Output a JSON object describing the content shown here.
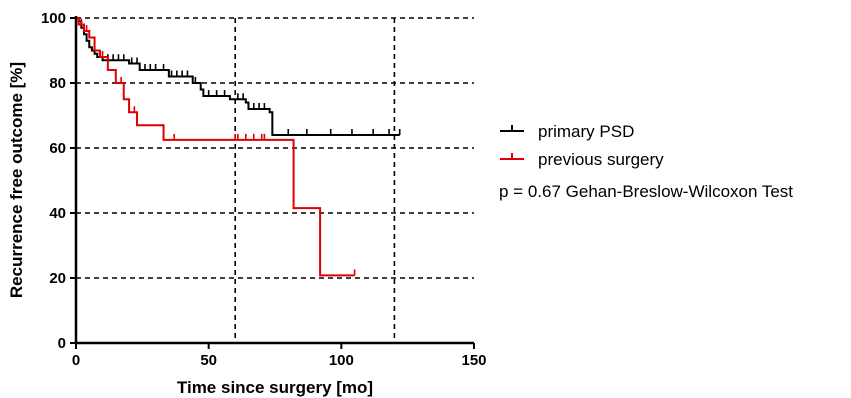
{
  "chart_data": {
    "type": "line",
    "subtype": "kaplan-meier step",
    "title": "",
    "xlabel": "Time since surgery [mo]",
    "ylabel": "Recurrence free outcome [%]",
    "xlim": [
      0,
      150
    ],
    "ylim": [
      0,
      100
    ],
    "xticks": [
      0,
      50,
      100,
      150
    ],
    "yticks": [
      0,
      20,
      40,
      60,
      80,
      100
    ],
    "grid": "dashed",
    "vertical_reference_lines": [
      60,
      120
    ],
    "legend_position": "right",
    "annotation": "p = 0.67 Gehan-Breslow-Wilcoxon Test",
    "series": [
      {
        "name": "primary PSD",
        "color": "#000000",
        "steps": [
          [
            0,
            100
          ],
          [
            1,
            99
          ],
          [
            2,
            97
          ],
          [
            3,
            95
          ],
          [
            4,
            93
          ],
          [
            5,
            91
          ],
          [
            6,
            90
          ],
          [
            7,
            89
          ],
          [
            8,
            88
          ],
          [
            10,
            87
          ],
          [
            20,
            86
          ],
          [
            24,
            84
          ],
          [
            35,
            82
          ],
          [
            44,
            80
          ],
          [
            47,
            78
          ],
          [
            48,
            76
          ],
          [
            58,
            75
          ],
          [
            64,
            74
          ],
          [
            65,
            72
          ],
          [
            73,
            71
          ],
          [
            74,
            64
          ],
          [
            122,
            64
          ]
        ],
        "censored_x": [
          5,
          9,
          12,
          14,
          16,
          18,
          21,
          23,
          26,
          28,
          30,
          33,
          36,
          38,
          40,
          42,
          45,
          50,
          53,
          56,
          61,
          63,
          67,
          69,
          71,
          80,
          87,
          96,
          104,
          112,
          118,
          122
        ]
      },
      {
        "name": "previous surgery",
        "color": "#e00000",
        "steps": [
          [
            0,
            100
          ],
          [
            1,
            98
          ],
          [
            3,
            96
          ],
          [
            5,
            94
          ],
          [
            7,
            90
          ],
          [
            9,
            88
          ],
          [
            12,
            84
          ],
          [
            15,
            80
          ],
          [
            18,
            75
          ],
          [
            20,
            71
          ],
          [
            23,
            67
          ],
          [
            33,
            62.5
          ],
          [
            82,
            41.5
          ],
          [
            92,
            20.8
          ],
          [
            105,
            20.8
          ]
        ],
        "censored_x": [
          2,
          4,
          10,
          17,
          22,
          37,
          60,
          61,
          64,
          67,
          70,
          71,
          105
        ]
      }
    ]
  }
}
